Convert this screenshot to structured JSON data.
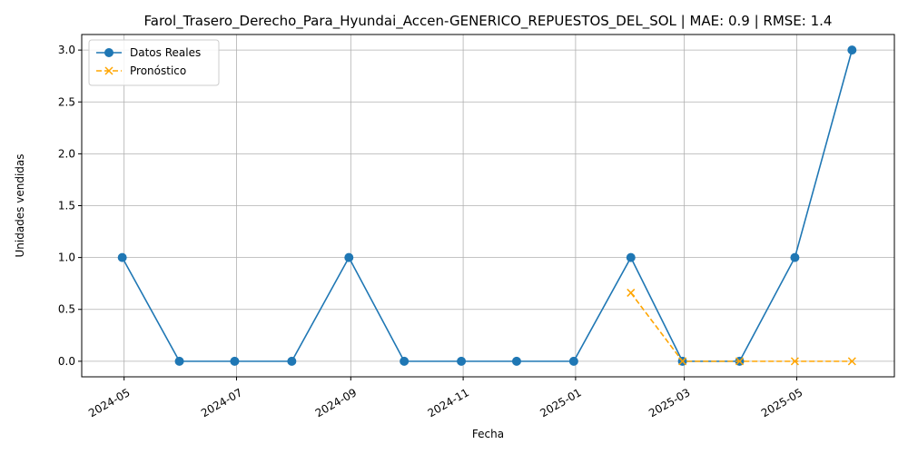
{
  "chart_data": {
    "type": "line",
    "title": "Farol_Trasero_Derecho_Para_Hyundai_Accen-GENERICO_REPUESTOS_DEL_SOL | MAE: 0.9 | RMSE: 1.4",
    "xlabel": "Fecha",
    "ylabel": "Unidades vendidas",
    "ylim": [
      -0.15,
      3.15
    ],
    "xlim": [
      "2024-04-08",
      "2025-06-23"
    ],
    "grid": true,
    "legend_position": "upper-left",
    "x_ticks": [
      "2024-05-01",
      "2024-07-01",
      "2024-09-01",
      "2024-11-01",
      "2025-01-01",
      "2025-03-01",
      "2025-05-01"
    ],
    "x_tick_labels": [
      "2024-05",
      "2024-07",
      "2024-09",
      "2024-11",
      "2025-01",
      "2025-03",
      "2025-05"
    ],
    "y_ticks": [
      0.0,
      0.5,
      1.0,
      1.5,
      2.0,
      2.5,
      3.0
    ],
    "y_tick_labels": [
      "0.0",
      "0.5",
      "1.0",
      "1.5",
      "2.0",
      "2.5",
      "3.0"
    ],
    "series": [
      {
        "name": "Datos Reales",
        "color": "#1f77b4",
        "marker": "circle",
        "linestyle": "solid",
        "x": [
          "2024-04-30",
          "2024-05-31",
          "2024-06-30",
          "2024-07-31",
          "2024-08-31",
          "2024-09-30",
          "2024-10-31",
          "2024-11-30",
          "2024-12-31",
          "2025-01-31",
          "2025-02-28",
          "2025-03-31",
          "2025-04-30",
          "2025-05-31"
        ],
        "values": [
          1,
          0,
          0,
          0,
          1,
          0,
          0,
          0,
          0,
          1,
          0,
          0,
          1,
          3
        ]
      },
      {
        "name": "Pronóstico",
        "color": "#ffa500",
        "marker": "x",
        "linestyle": "dashed",
        "x": [
          "2025-01-31",
          "2025-02-28",
          "2025-03-31",
          "2025-04-30",
          "2025-05-31"
        ],
        "values": [
          0.66,
          0.0,
          0.0,
          0.0,
          0.0
        ]
      }
    ]
  }
}
